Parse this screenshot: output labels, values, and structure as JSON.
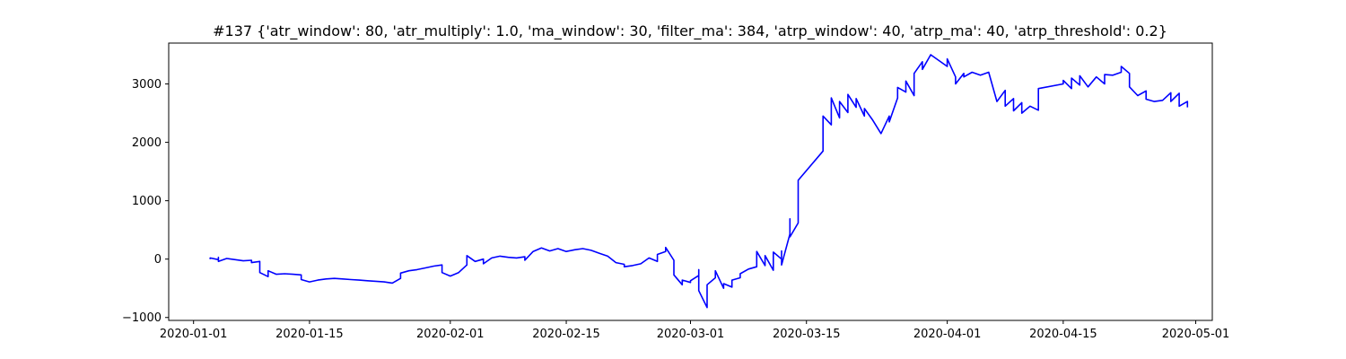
{
  "chart_data": {
    "type": "line",
    "title": "#137 {'atr_window': 80, 'atr_multiply': 1.0, 'ma_window': 30, 'filter_ma': 384, 'atrp_window': 40, 'atrp_ma': 40, 'atrp_threshold': 0.2}",
    "xlabel": "",
    "ylabel": "",
    "grid": false,
    "legend": "none",
    "xlim": [
      "2019-12-29",
      "2020-05-03"
    ],
    "ylim": [
      -1050,
      3700
    ],
    "x_ticks": [
      "2020-01-01",
      "2020-01-15",
      "2020-02-01",
      "2020-02-15",
      "2020-03-01",
      "2020-03-15",
      "2020-04-01",
      "2020-04-15",
      "2020-05-01"
    ],
    "y_ticks": [
      -1000,
      0,
      1000,
      2000,
      3000
    ],
    "y_tick_labels": [
      "−1000",
      "0",
      "1000",
      "2000",
      "3000"
    ],
    "series": [
      {
        "color": "#0000ff",
        "points": [
          [
            "2020-01-03",
            0
          ],
          [
            "2020-01-03",
            20
          ],
          [
            "2020-01-04",
            -10
          ],
          [
            "2020-01-04",
            30
          ],
          [
            "2020-01-04",
            -40
          ],
          [
            "2020-01-05",
            10
          ],
          [
            "2020-01-07",
            -30
          ],
          [
            "2020-01-08",
            -20
          ],
          [
            "2020-01-08",
            -60
          ],
          [
            "2020-01-09",
            -40
          ],
          [
            "2020-01-09",
            -90
          ],
          [
            "2020-01-09",
            -230
          ],
          [
            "2020-01-10",
            -300
          ],
          [
            "2020-01-10",
            -200
          ],
          [
            "2020-01-11",
            -260
          ],
          [
            "2020-01-12",
            -250
          ],
          [
            "2020-01-13",
            -260
          ],
          [
            "2020-01-14",
            -270
          ],
          [
            "2020-01-14",
            -350
          ],
          [
            "2020-01-15",
            -390
          ],
          [
            "2020-01-16",
            -360
          ],
          [
            "2020-01-17",
            -340
          ],
          [
            "2020-01-18",
            -330
          ],
          [
            "2020-01-19",
            -340
          ],
          [
            "2020-01-20",
            -350
          ],
          [
            "2020-01-21",
            -360
          ],
          [
            "2020-01-22",
            -370
          ],
          [
            "2020-01-23",
            -380
          ],
          [
            "2020-01-24",
            -390
          ],
          [
            "2020-01-25",
            -410
          ],
          [
            "2020-01-26",
            -330
          ],
          [
            "2020-01-26",
            -240
          ],
          [
            "2020-01-27",
            -200
          ],
          [
            "2020-01-28",
            -180
          ],
          [
            "2020-01-29",
            -150
          ],
          [
            "2020-01-30",
            -120
          ],
          [
            "2020-01-31",
            -100
          ],
          [
            "2020-01-31",
            -230
          ],
          [
            "2020-02-01",
            -290
          ],
          [
            "2020-02-02",
            -230
          ],
          [
            "2020-02-03",
            -100
          ],
          [
            "2020-02-03",
            60
          ],
          [
            "2020-02-04",
            -40
          ],
          [
            "2020-02-05",
            0
          ],
          [
            "2020-02-05",
            -80
          ],
          [
            "2020-02-06",
            20
          ],
          [
            "2020-02-07",
            50
          ],
          [
            "2020-02-08",
            30
          ],
          [
            "2020-02-09",
            20
          ],
          [
            "2020-02-10",
            40
          ],
          [
            "2020-02-10",
            -20
          ],
          [
            "2020-02-11",
            130
          ],
          [
            "2020-02-12",
            190
          ],
          [
            "2020-02-13",
            140
          ],
          [
            "2020-02-14",
            180
          ],
          [
            "2020-02-15",
            130
          ],
          [
            "2020-02-16",
            160
          ],
          [
            "2020-02-17",
            180
          ],
          [
            "2020-02-18",
            150
          ],
          [
            "2020-02-19",
            100
          ],
          [
            "2020-02-20",
            50
          ],
          [
            "2020-02-21",
            -60
          ],
          [
            "2020-02-22",
            -90
          ],
          [
            "2020-02-22",
            -130
          ],
          [
            "2020-02-23",
            -110
          ],
          [
            "2020-02-24",
            -80
          ],
          [
            "2020-02-25",
            20
          ],
          [
            "2020-02-26",
            -40
          ],
          [
            "2020-02-26",
            80
          ],
          [
            "2020-02-27",
            130
          ],
          [
            "2020-02-27",
            200
          ],
          [
            "2020-02-28",
            -20
          ],
          [
            "2020-02-28",
            -270
          ],
          [
            "2020-02-29",
            -440
          ],
          [
            "2020-02-29",
            -360
          ],
          [
            "2020-03-01",
            -400
          ],
          [
            "2020-03-01",
            -370
          ],
          [
            "2020-03-02",
            -280
          ],
          [
            "2020-03-02",
            -180
          ],
          [
            "2020-03-02",
            -540
          ],
          [
            "2020-03-03",
            -830
          ],
          [
            "2020-03-03",
            -620
          ],
          [
            "2020-03-03",
            -440
          ],
          [
            "2020-03-04",
            -320
          ],
          [
            "2020-03-04",
            -200
          ],
          [
            "2020-03-05",
            -500
          ],
          [
            "2020-03-05",
            -420
          ],
          [
            "2020-03-06",
            -480
          ],
          [
            "2020-03-06",
            -360
          ],
          [
            "2020-03-07",
            -320
          ],
          [
            "2020-03-07",
            -250
          ],
          [
            "2020-03-08",
            -170
          ],
          [
            "2020-03-09",
            -130
          ],
          [
            "2020-03-09",
            130
          ],
          [
            "2020-03-10",
            -110
          ],
          [
            "2020-03-10",
            60
          ],
          [
            "2020-03-11",
            -190
          ],
          [
            "2020-03-11",
            120
          ],
          [
            "2020-03-12",
            0
          ],
          [
            "2020-03-12",
            140
          ],
          [
            "2020-03-12",
            -100
          ],
          [
            "2020-03-13",
            430
          ],
          [
            "2020-03-13",
            690
          ],
          [
            "2020-03-13",
            380
          ],
          [
            "2020-03-14",
            620
          ],
          [
            "2020-03-14",
            1000
          ],
          [
            "2020-03-14",
            1350
          ],
          [
            "2020-03-17",
            1850
          ],
          [
            "2020-03-17",
            2450
          ],
          [
            "2020-03-18",
            2300
          ],
          [
            "2020-03-18",
            2580
          ],
          [
            "2020-03-18",
            2760
          ],
          [
            "2020-03-19",
            2420
          ],
          [
            "2020-03-19",
            2700
          ],
          [
            "2020-03-20",
            2510
          ],
          [
            "2020-03-20",
            2820
          ],
          [
            "2020-03-21",
            2600
          ],
          [
            "2020-03-21",
            2750
          ],
          [
            "2020-03-22",
            2450
          ],
          [
            "2020-03-22",
            2580
          ],
          [
            "2020-03-23",
            2380
          ],
          [
            "2020-03-24",
            2150
          ],
          [
            "2020-03-25",
            2450
          ],
          [
            "2020-03-25",
            2350
          ],
          [
            "2020-03-26",
            2760
          ],
          [
            "2020-03-26",
            2940
          ],
          [
            "2020-03-27",
            2860
          ],
          [
            "2020-03-27",
            3050
          ],
          [
            "2020-03-28",
            2800
          ],
          [
            "2020-03-28",
            3180
          ],
          [
            "2020-03-29",
            3380
          ],
          [
            "2020-03-29",
            3250
          ],
          [
            "2020-03-30",
            3500
          ],
          [
            "2020-04-01",
            3300
          ],
          [
            "2020-04-01",
            3430
          ],
          [
            "2020-04-02",
            3120
          ],
          [
            "2020-04-02",
            3000
          ],
          [
            "2020-04-03",
            3180
          ],
          [
            "2020-04-03",
            3120
          ],
          [
            "2020-04-04",
            3200
          ],
          [
            "2020-04-05",
            3150
          ],
          [
            "2020-04-06",
            3200
          ],
          [
            "2020-04-07",
            2700
          ],
          [
            "2020-04-08",
            2890
          ],
          [
            "2020-04-08",
            2620
          ],
          [
            "2020-04-09",
            2750
          ],
          [
            "2020-04-09",
            2540
          ],
          [
            "2020-04-10",
            2680
          ],
          [
            "2020-04-10",
            2500
          ],
          [
            "2020-04-11",
            2620
          ],
          [
            "2020-04-12",
            2550
          ],
          [
            "2020-04-12",
            2920
          ],
          [
            "2020-04-15",
            3000
          ],
          [
            "2020-04-15",
            3060
          ],
          [
            "2020-04-16",
            2920
          ],
          [
            "2020-04-16",
            3100
          ],
          [
            "2020-04-17",
            2980
          ],
          [
            "2020-04-17",
            3140
          ],
          [
            "2020-04-18",
            2950
          ],
          [
            "2020-04-19",
            3120
          ],
          [
            "2020-04-20",
            3000
          ],
          [
            "2020-04-20",
            3160
          ],
          [
            "2020-04-21",
            3150
          ],
          [
            "2020-04-22",
            3200
          ],
          [
            "2020-04-22",
            3300
          ],
          [
            "2020-04-23",
            3180
          ],
          [
            "2020-04-23",
            2950
          ],
          [
            "2020-04-24",
            2800
          ],
          [
            "2020-04-25",
            2880
          ],
          [
            "2020-04-25",
            2740
          ],
          [
            "2020-04-26",
            2700
          ],
          [
            "2020-04-27",
            2720
          ],
          [
            "2020-04-28",
            2850
          ],
          [
            "2020-04-28",
            2700
          ],
          [
            "2020-04-29",
            2840
          ],
          [
            "2020-04-29",
            2620
          ],
          [
            "2020-04-30",
            2700
          ],
          [
            "2020-04-30",
            2600
          ]
        ]
      }
    ]
  }
}
